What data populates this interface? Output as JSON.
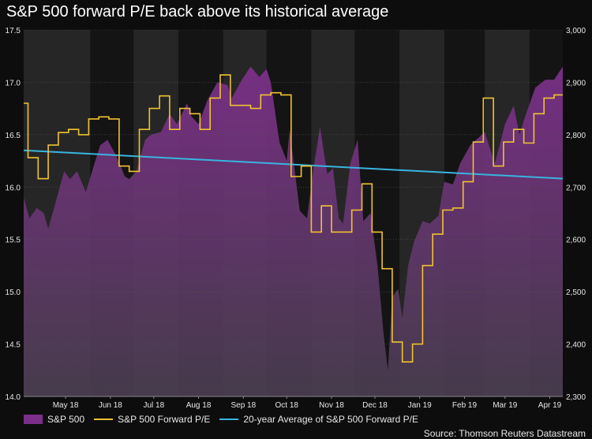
{
  "colors": {
    "background": "#0d0d0d",
    "plot_bg": "#262626",
    "shade": "#141414",
    "area_top": "#7b2f88",
    "area_bottom": "#4a3e50",
    "pe_line": "#f0c230",
    "avg_line": "#39b4e0",
    "grid": "#555555",
    "text": "#e6e6e6"
  },
  "chart_data": {
    "type": "line",
    "title": "S&P 500 forward P/E back above its historical average",
    "source": "Source: Thomson Reuters Datastream",
    "x_range": [
      "2018-04-16",
      "2019-04-24"
    ],
    "x_ticks": [
      {
        "date": "2018-05-15",
        "label": "May 18"
      },
      {
        "date": "2018-06-15",
        "label": "Jun 18"
      },
      {
        "date": "2018-07-15",
        "label": "Jul 18"
      },
      {
        "date": "2018-08-15",
        "label": "Aug 18"
      },
      {
        "date": "2018-09-15",
        "label": "Sep 18"
      },
      {
        "date": "2018-10-15",
        "label": "Oct 18"
      },
      {
        "date": "2018-11-15",
        "label": "Nov 18"
      },
      {
        "date": "2018-12-15",
        "label": "Dec 18"
      },
      {
        "date": "2019-01-15",
        "label": "Jan 19"
      },
      {
        "date": "2019-02-15",
        "label": "Feb 19"
      },
      {
        "date": "2019-03-15",
        "label": "Mar 19"
      },
      {
        "date": "2019-04-15",
        "label": "Apr 19"
      }
    ],
    "shaded_periods": [
      {
        "start": "2018-06-01",
        "end": "2018-07-01"
      },
      {
        "start": "2018-08-01",
        "end": "2018-09-01"
      },
      {
        "start": "2018-10-01",
        "end": "2018-11-01"
      },
      {
        "start": "2018-12-01",
        "end": "2019-01-01"
      },
      {
        "start": "2019-02-01",
        "end": "2019-03-01"
      },
      {
        "start": "2019-04-01",
        "end": "2019-04-24"
      }
    ],
    "y_left": {
      "min": 14.0,
      "max": 17.5,
      "ticks": [
        "14.0",
        "14.5",
        "15.0",
        "15.5",
        "16.0",
        "16.5",
        "17.0",
        "17.5"
      ]
    },
    "y_right": {
      "min": 2300,
      "max": 3000,
      "ticks": [
        "2,300",
        "2,400",
        "2,500",
        "2,600",
        "2,700",
        "2,800",
        "2,900",
        "3,000"
      ]
    },
    "series": [
      {
        "name": "S&P 500",
        "axis": "right",
        "style": "area",
        "points": [
          [
            "2018-04-16",
            2680
          ],
          [
            "2018-04-20",
            2640
          ],
          [
            "2018-04-25",
            2660
          ],
          [
            "2018-04-30",
            2650
          ],
          [
            "2018-05-03",
            2620
          ],
          [
            "2018-05-08",
            2670
          ],
          [
            "2018-05-14",
            2730
          ],
          [
            "2018-05-18",
            2715
          ],
          [
            "2018-05-23",
            2730
          ],
          [
            "2018-05-29",
            2690
          ],
          [
            "2018-06-04",
            2745
          ],
          [
            "2018-06-08",
            2780
          ],
          [
            "2018-06-13",
            2790
          ],
          [
            "2018-06-19",
            2760
          ],
          [
            "2018-06-25",
            2720
          ],
          [
            "2018-06-28",
            2715
          ],
          [
            "2018-07-03",
            2730
          ],
          [
            "2018-07-09",
            2790
          ],
          [
            "2018-07-13",
            2800
          ],
          [
            "2018-07-20",
            2805
          ],
          [
            "2018-07-26",
            2840
          ],
          [
            "2018-07-31",
            2820
          ],
          [
            "2018-08-07",
            2860
          ],
          [
            "2018-08-10",
            2835
          ],
          [
            "2018-08-15",
            2820
          ],
          [
            "2018-08-21",
            2865
          ],
          [
            "2018-08-28",
            2900
          ],
          [
            "2018-09-04",
            2895
          ],
          [
            "2018-09-07",
            2870
          ],
          [
            "2018-09-14",
            2905
          ],
          [
            "2018-09-20",
            2930
          ],
          [
            "2018-09-26",
            2910
          ],
          [
            "2018-10-01",
            2925
          ],
          [
            "2018-10-04",
            2900
          ],
          [
            "2018-10-10",
            2785
          ],
          [
            "2018-10-15",
            2750
          ],
          [
            "2018-10-17",
            2810
          ],
          [
            "2018-10-24",
            2655
          ],
          [
            "2018-10-29",
            2640
          ],
          [
            "2018-11-02",
            2725
          ],
          [
            "2018-11-07",
            2815
          ],
          [
            "2018-11-12",
            2725
          ],
          [
            "2018-11-16",
            2735
          ],
          [
            "2018-11-20",
            2640
          ],
          [
            "2018-11-23",
            2630
          ],
          [
            "2018-11-28",
            2745
          ],
          [
            "2018-12-03",
            2790
          ],
          [
            "2018-12-07",
            2635
          ],
          [
            "2018-12-12",
            2650
          ],
          [
            "2018-12-17",
            2545
          ],
          [
            "2018-12-21",
            2420
          ],
          [
            "2018-12-24",
            2350
          ],
          [
            "2018-12-27",
            2490
          ],
          [
            "2018-12-31",
            2505
          ],
          [
            "2019-01-03",
            2450
          ],
          [
            "2019-01-07",
            2550
          ],
          [
            "2019-01-11",
            2595
          ],
          [
            "2019-01-17",
            2635
          ],
          [
            "2019-01-22",
            2630
          ],
          [
            "2019-01-28",
            2645
          ],
          [
            "2019-02-01",
            2710
          ],
          [
            "2019-02-07",
            2705
          ],
          [
            "2019-02-12",
            2745
          ],
          [
            "2019-02-19",
            2780
          ],
          [
            "2019-02-25",
            2795
          ],
          [
            "2019-03-01",
            2805
          ],
          [
            "2019-03-08",
            2745
          ],
          [
            "2019-03-15",
            2820
          ],
          [
            "2019-03-21",
            2855
          ],
          [
            "2019-03-25",
            2800
          ],
          [
            "2019-03-29",
            2835
          ],
          [
            "2019-04-05",
            2890
          ],
          [
            "2019-04-12",
            2905
          ],
          [
            "2019-04-18",
            2905
          ],
          [
            "2019-04-24",
            2930
          ]
        ]
      },
      {
        "name": "S&P 500 Forward P/E",
        "axis": "left",
        "style": "step",
        "points": [
          [
            "2018-04-16",
            16.8
          ],
          [
            "2018-04-19",
            16.28
          ],
          [
            "2018-04-26",
            16.08
          ],
          [
            "2018-05-03",
            16.4
          ],
          [
            "2018-05-10",
            16.52
          ],
          [
            "2018-05-17",
            16.55
          ],
          [
            "2018-05-24",
            16.5
          ],
          [
            "2018-05-31",
            16.65
          ],
          [
            "2018-06-07",
            16.67
          ],
          [
            "2018-06-14",
            16.65
          ],
          [
            "2018-06-21",
            16.2
          ],
          [
            "2018-06-28",
            16.15
          ],
          [
            "2018-07-05",
            16.55
          ],
          [
            "2018-07-12",
            16.75
          ],
          [
            "2018-07-19",
            16.87
          ],
          [
            "2018-07-26",
            16.55
          ],
          [
            "2018-08-02",
            16.75
          ],
          [
            "2018-08-09",
            16.7
          ],
          [
            "2018-08-16",
            16.55
          ],
          [
            "2018-08-23",
            16.85
          ],
          [
            "2018-08-30",
            17.07
          ],
          [
            "2018-09-06",
            16.78
          ],
          [
            "2018-09-13",
            16.78
          ],
          [
            "2018-09-20",
            16.75
          ],
          [
            "2018-09-27",
            16.88
          ],
          [
            "2018-10-04",
            16.9
          ],
          [
            "2018-10-11",
            16.88
          ],
          [
            "2018-10-18",
            16.1
          ],
          [
            "2018-10-25",
            16.2
          ],
          [
            "2018-11-01",
            15.57
          ],
          [
            "2018-11-08",
            15.82
          ],
          [
            "2018-11-15",
            15.57
          ],
          [
            "2018-11-22",
            15.57
          ],
          [
            "2018-11-29",
            15.78
          ],
          [
            "2018-12-06",
            16.03
          ],
          [
            "2018-12-13",
            15.57
          ],
          [
            "2018-12-20",
            15.22
          ],
          [
            "2018-12-27",
            14.52
          ],
          [
            "2019-01-03",
            14.33
          ],
          [
            "2019-01-10",
            14.5
          ],
          [
            "2019-01-17",
            15.25
          ],
          [
            "2019-01-24",
            15.55
          ],
          [
            "2019-01-31",
            15.78
          ],
          [
            "2019-02-07",
            15.8
          ],
          [
            "2019-02-14",
            16.05
          ],
          [
            "2019-02-21",
            16.43
          ],
          [
            "2019-02-28",
            16.85
          ],
          [
            "2019-03-07",
            16.2
          ],
          [
            "2019-03-14",
            16.43
          ],
          [
            "2019-03-21",
            16.55
          ],
          [
            "2019-03-28",
            16.42
          ],
          [
            "2019-04-04",
            16.7
          ],
          [
            "2019-04-11",
            16.85
          ],
          [
            "2019-04-18",
            16.88
          ],
          [
            "2019-04-24",
            16.88
          ]
        ]
      },
      {
        "name": "20-year Average of S&P 500 Forward P/E",
        "axis": "left",
        "style": "line",
        "points": [
          [
            "2018-04-16",
            16.35
          ],
          [
            "2019-04-24",
            16.08
          ]
        ]
      }
    ],
    "legend": {
      "position": "bottom-left"
    }
  }
}
